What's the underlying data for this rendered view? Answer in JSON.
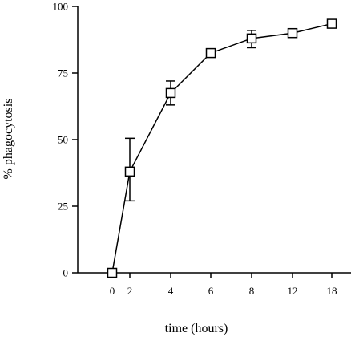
{
  "chart_data": {
    "type": "line",
    "title": "",
    "xlabel": "time (hours)",
    "ylabel": "% phagocytosis",
    "x_categories": [
      "0",
      "2",
      "4",
      "6",
      "8",
      "12",
      "18"
    ],
    "y_ticks": [
      0,
      25,
      50,
      75,
      100
    ],
    "ylim": [
      0,
      100
    ],
    "grid": false,
    "legend": "none",
    "marker": "open-square",
    "series": [
      {
        "values": [
          0,
          38,
          67.5,
          82.5,
          88,
          90,
          93.5
        ],
        "error_low": [
          null,
          27,
          63,
          null,
          84.5,
          null,
          null
        ],
        "error_high": [
          null,
          50.5,
          72,
          null,
          91,
          null,
          null
        ]
      }
    ]
  }
}
